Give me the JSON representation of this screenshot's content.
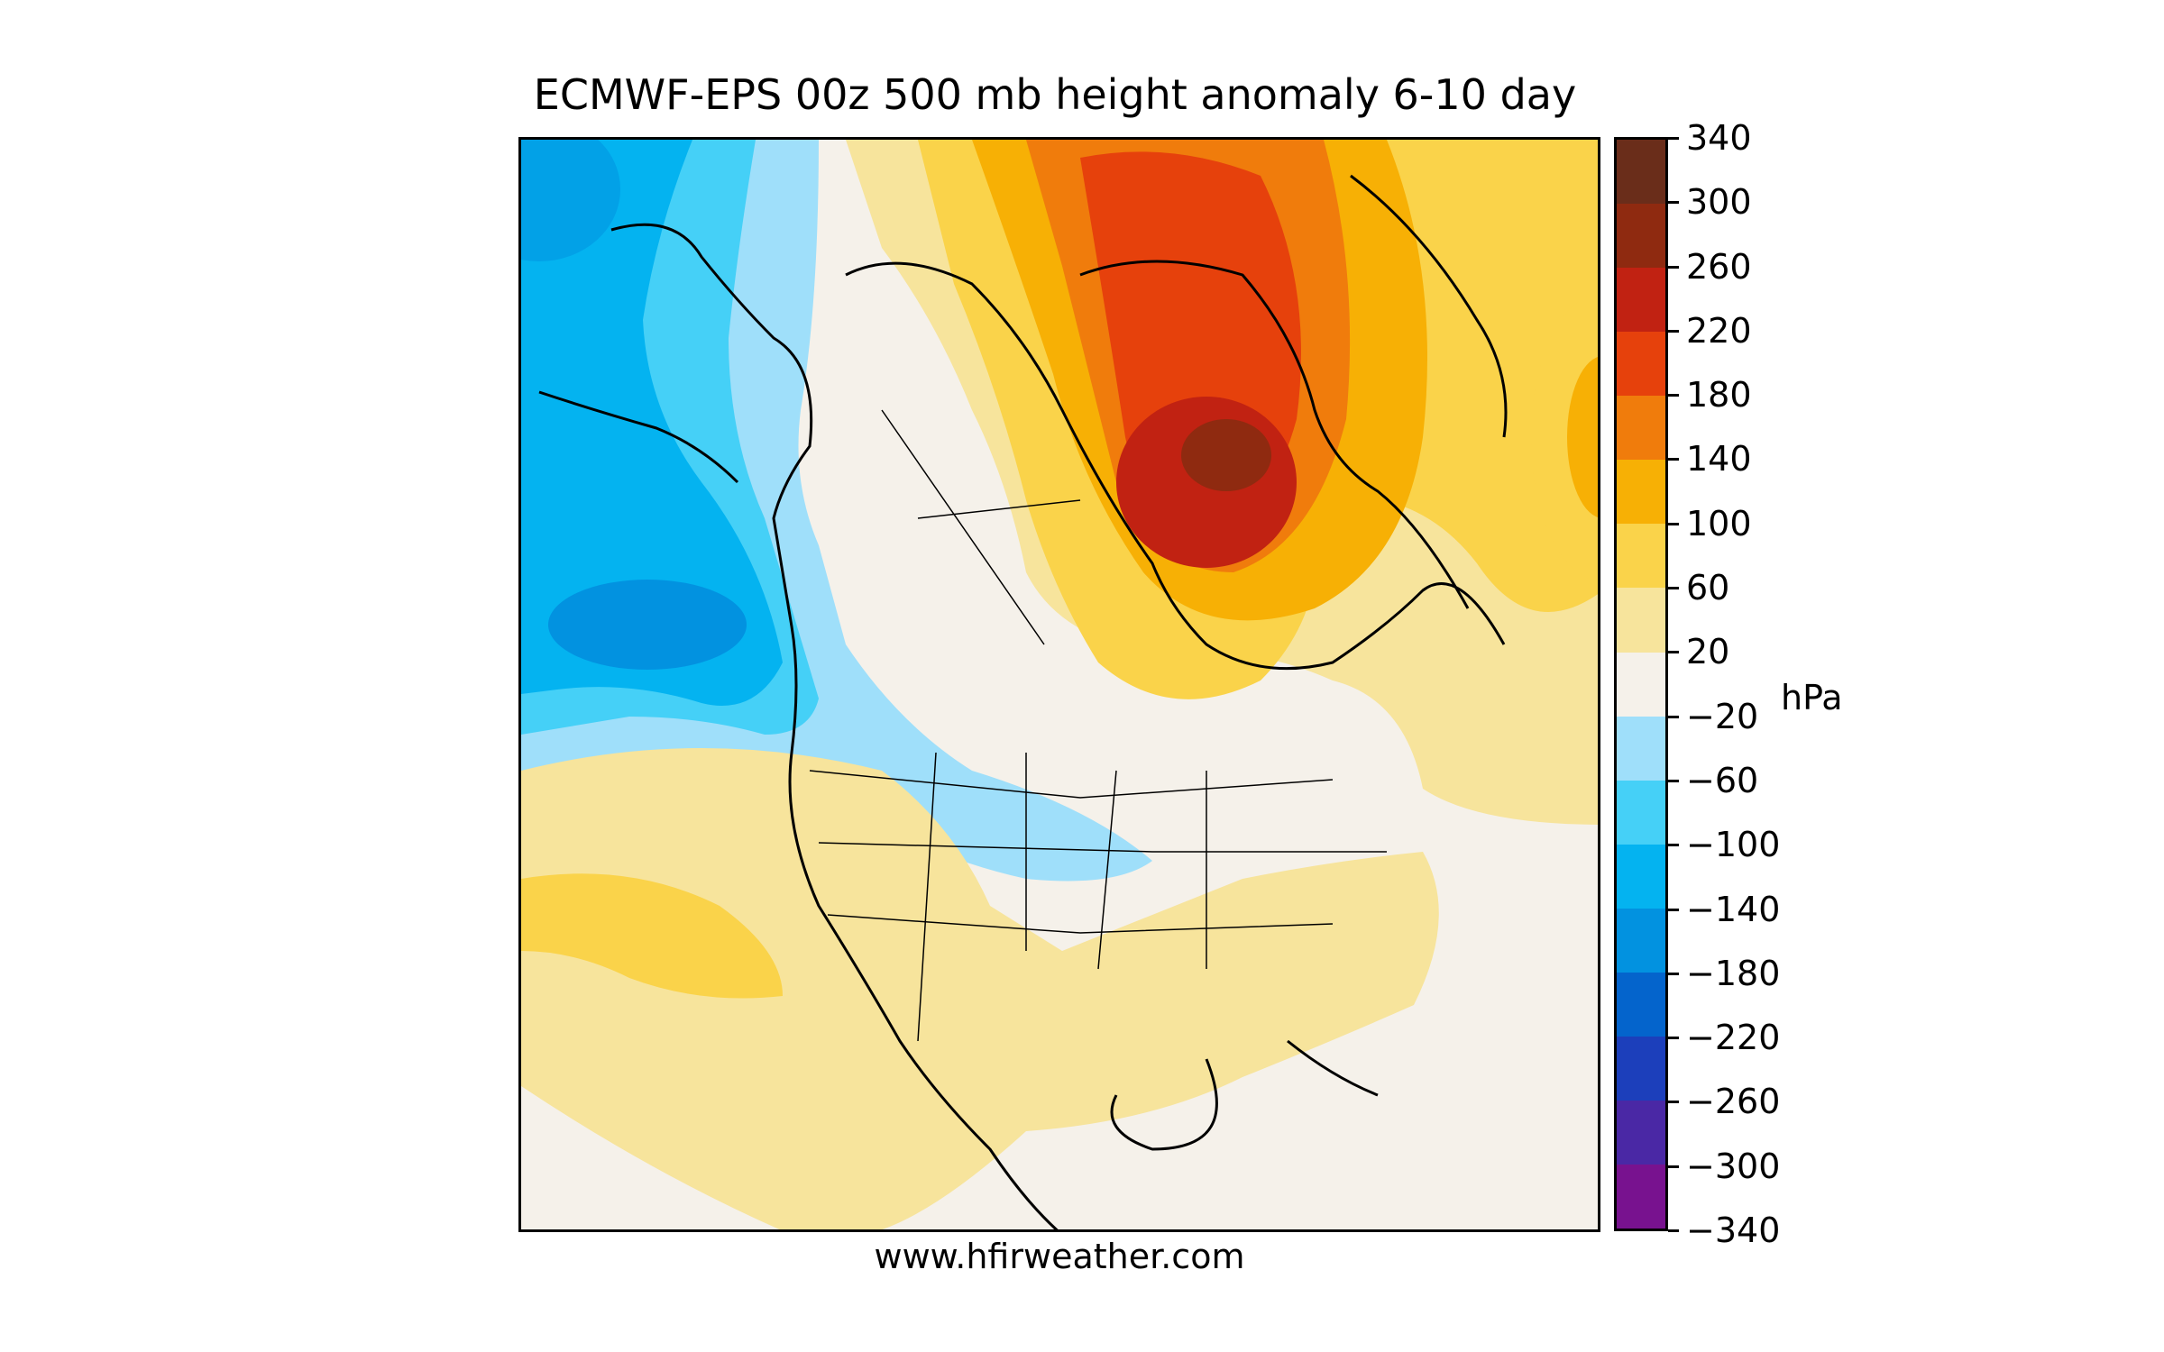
{
  "title": "ECMWF-EPS 00z 500 mb height anomaly 6-10 day",
  "credit": "www.hfirweather.com",
  "colorbar": {
    "unit": "hPa",
    "ticks": [
      "340",
      "300",
      "260",
      "220",
      "180",
      "140",
      "100",
      "60",
      "20",
      "−20",
      "−60",
      "−100",
      "−140",
      "−180",
      "−220",
      "−260",
      "−300",
      "−340"
    ],
    "colors": [
      "#6a2d1a",
      "#8f2a10",
      "#c12212",
      "#e6410c",
      "#f07c0c",
      "#f7b005",
      "#fad34a",
      "#f7e49c",
      "#f5f1ea",
      "#9fdffa",
      "#45d0f7",
      "#04b3f0",
      "#0292e0",
      "#0464cc",
      "#1c3fbb",
      "#4a28a5",
      "#78128f"
    ]
  }
}
